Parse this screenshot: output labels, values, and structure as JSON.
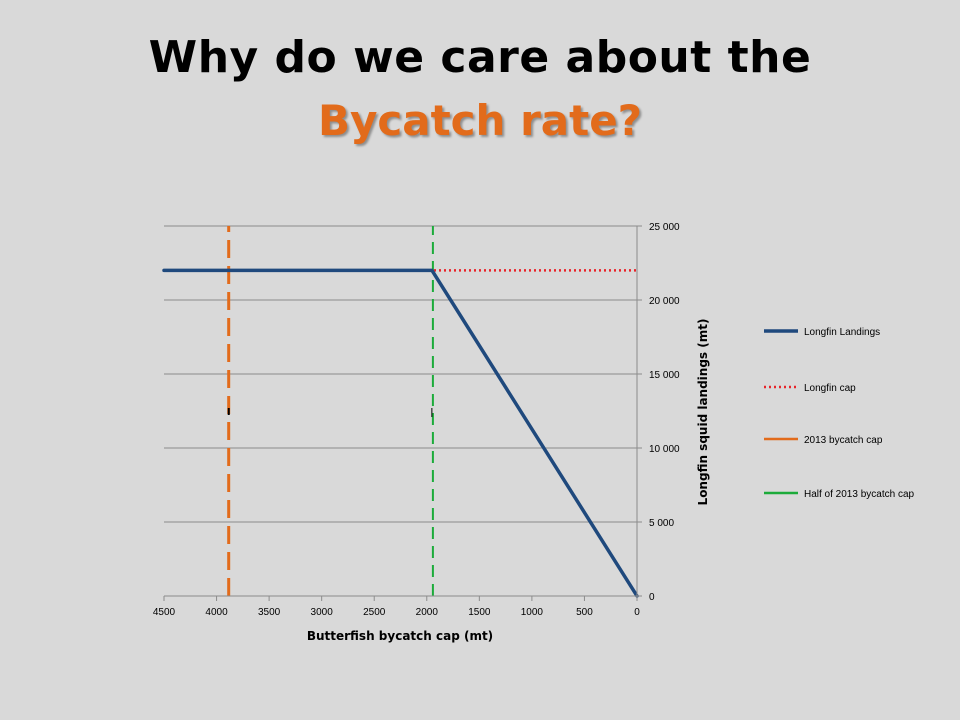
{
  "slide": {
    "title_line1": "Why do we care about the",
    "title_line2": "Bycatch rate?",
    "accent_color": "#e26b1b",
    "background": "#d9d9d9"
  },
  "chart_data": {
    "type": "line",
    "xlabel": "Butterfish bycatch cap (mt)",
    "ylabel": "Longfin squid landings (mt)",
    "xlim": [
      4500,
      0
    ],
    "x_reversed": true,
    "ylim": [
      0,
      25000
    ],
    "x_ticks": [
      4500,
      4000,
      3500,
      3000,
      2500,
      2000,
      1500,
      1000,
      500,
      0
    ],
    "y_ticks": [
      0,
      5000,
      10000,
      15000,
      20000,
      25000
    ],
    "y_tick_labels": [
      "0",
      "5 000",
      "10 000",
      "15 000",
      "20 000",
      "25 000"
    ],
    "y_axis_side": "right",
    "grid": "horizontal",
    "legend_position": "right",
    "series": [
      {
        "name": "Longfin Landings",
        "style": "solid",
        "color": "#1f497d",
        "points": [
          [
            4500,
            22000
          ],
          [
            1950,
            22000
          ],
          [
            0,
            0
          ]
        ]
      },
      {
        "name": "Longfin cap",
        "style": "dotted",
        "color": "#e8242a",
        "points": [
          [
            4500,
            22000
          ],
          [
            0,
            22000
          ]
        ]
      },
      {
        "name": "2013 bycatch cap",
        "style": "dashed",
        "color": "#e26b1b",
        "points": [
          [
            3884,
            0
          ],
          [
            3884,
            25000
          ]
        ]
      },
      {
        "name": "Half of 2013 bycatch cap",
        "style": "dashed",
        "color": "#1cab3a",
        "points": [
          [
            1942,
            0
          ],
          [
            1942,
            25000
          ]
        ]
      }
    ]
  }
}
